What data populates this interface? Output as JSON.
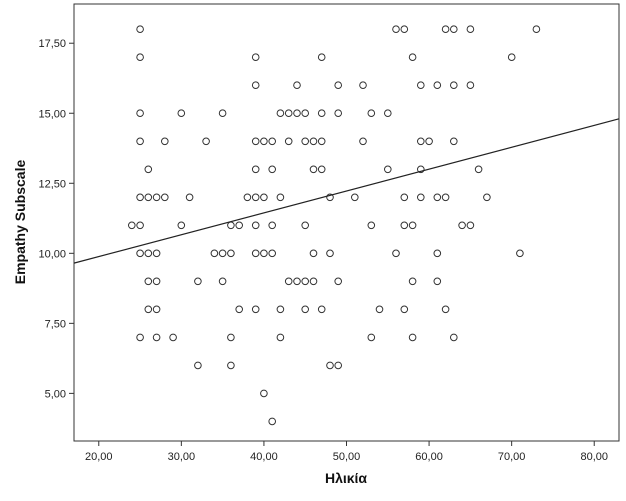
{
  "chart_data": {
    "type": "scatter",
    "title": "",
    "xlabel": "Ηλικία",
    "ylabel": "Empathy Subscale",
    "xlim": [
      17,
      83
    ],
    "ylim": [
      3.3,
      18.9
    ],
    "x_ticks": [
      20,
      30,
      40,
      50,
      60,
      70,
      80
    ],
    "x_tick_labels": [
      "20,00",
      "30,00",
      "40,00",
      "50,00",
      "60,00",
      "70,00",
      "80,00"
    ],
    "y_ticks": [
      5,
      7.5,
      10,
      12.5,
      15,
      17.5
    ],
    "y_tick_labels": [
      "5,00",
      "7,50",
      "10,00",
      "12,50",
      "15,00",
      "17,50"
    ],
    "grid": false,
    "legend": "none",
    "colors": {
      "marker": "#333333",
      "fit_line": "#222222",
      "plot_border": "#333333"
    },
    "fit_line": {
      "x": [
        17,
        83
      ],
      "y": [
        9.65,
        14.8
      ]
    },
    "points": [
      [
        25,
        18
      ],
      [
        56,
        18
      ],
      [
        57,
        18
      ],
      [
        62,
        18
      ],
      [
        63,
        18
      ],
      [
        65,
        18
      ],
      [
        73,
        18
      ],
      [
        25,
        17
      ],
      [
        39,
        17
      ],
      [
        47,
        17
      ],
      [
        58,
        17
      ],
      [
        70,
        17
      ],
      [
        39,
        16
      ],
      [
        44,
        16
      ],
      [
        49,
        16
      ],
      [
        52,
        16
      ],
      [
        59,
        16
      ],
      [
        61,
        16
      ],
      [
        63,
        16
      ],
      [
        65,
        16
      ],
      [
        25,
        15
      ],
      [
        30,
        15
      ],
      [
        35,
        15
      ],
      [
        42,
        15
      ],
      [
        43,
        15
      ],
      [
        44,
        15
      ],
      [
        45,
        15
      ],
      [
        47,
        15
      ],
      [
        49,
        15
      ],
      [
        53,
        15
      ],
      [
        55,
        15
      ],
      [
        25,
        14
      ],
      [
        28,
        14
      ],
      [
        33,
        14
      ],
      [
        39,
        14
      ],
      [
        40,
        14
      ],
      [
        41,
        14
      ],
      [
        43,
        14
      ],
      [
        45,
        14
      ],
      [
        46,
        14
      ],
      [
        47,
        14
      ],
      [
        52,
        14
      ],
      [
        59,
        14
      ],
      [
        60,
        14
      ],
      [
        63,
        14
      ],
      [
        26,
        13
      ],
      [
        39,
        13
      ],
      [
        41,
        13
      ],
      [
        46,
        13
      ],
      [
        47,
        13
      ],
      [
        55,
        13
      ],
      [
        59,
        13
      ],
      [
        66,
        13
      ],
      [
        25,
        12
      ],
      [
        26,
        12
      ],
      [
        27,
        12
      ],
      [
        28,
        12
      ],
      [
        31,
        12
      ],
      [
        38,
        12
      ],
      [
        39,
        12
      ],
      [
        40,
        12
      ],
      [
        42,
        12
      ],
      [
        48,
        12
      ],
      [
        51,
        12
      ],
      [
        57,
        12
      ],
      [
        59,
        12
      ],
      [
        61,
        12
      ],
      [
        62,
        12
      ],
      [
        67,
        12
      ],
      [
        24,
        11
      ],
      [
        25,
        11
      ],
      [
        30,
        11
      ],
      [
        36,
        11
      ],
      [
        37,
        11
      ],
      [
        39,
        11
      ],
      [
        41,
        11
      ],
      [
        45,
        11
      ],
      [
        53,
        11
      ],
      [
        57,
        11
      ],
      [
        58,
        11
      ],
      [
        64,
        11
      ],
      [
        65,
        11
      ],
      [
        25,
        10
      ],
      [
        26,
        10
      ],
      [
        27,
        10
      ],
      [
        34,
        10
      ],
      [
        35,
        10
      ],
      [
        36,
        10
      ],
      [
        39,
        10
      ],
      [
        40,
        10
      ],
      [
        41,
        10
      ],
      [
        46,
        10
      ],
      [
        48,
        10
      ],
      [
        56,
        10
      ],
      [
        61,
        10
      ],
      [
        71,
        10
      ],
      [
        26,
        9
      ],
      [
        27,
        9
      ],
      [
        32,
        9
      ],
      [
        35,
        9
      ],
      [
        43,
        9
      ],
      [
        44,
        9
      ],
      [
        45,
        9
      ],
      [
        46,
        9
      ],
      [
        49,
        9
      ],
      [
        58,
        9
      ],
      [
        61,
        9
      ],
      [
        26,
        8
      ],
      [
        27,
        8
      ],
      [
        37,
        8
      ],
      [
        39,
        8
      ],
      [
        42,
        8
      ],
      [
        45,
        8
      ],
      [
        47,
        8
      ],
      [
        54,
        8
      ],
      [
        57,
        8
      ],
      [
        62,
        8
      ],
      [
        25,
        7
      ],
      [
        27,
        7
      ],
      [
        29,
        7
      ],
      [
        36,
        7
      ],
      [
        42,
        7
      ],
      [
        53,
        7
      ],
      [
        58,
        7
      ],
      [
        63,
        7
      ],
      [
        32,
        6
      ],
      [
        36,
        6
      ],
      [
        48,
        6
      ],
      [
        49,
        6
      ],
      [
        40,
        5
      ],
      [
        41,
        4
      ]
    ]
  }
}
